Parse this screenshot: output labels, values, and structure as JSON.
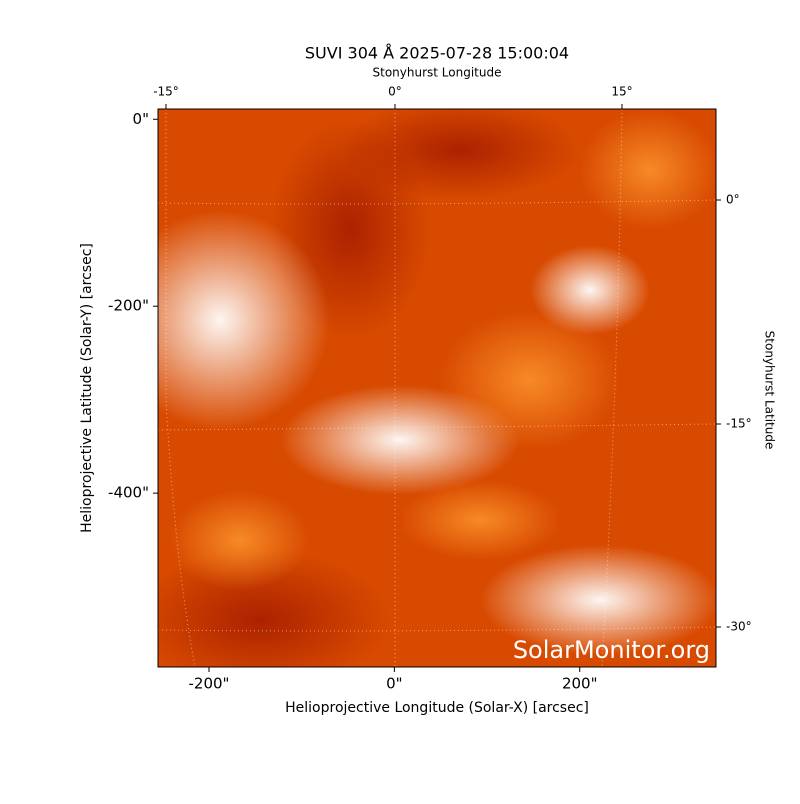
{
  "chart_data": {
    "type": "image",
    "title": "SUVI 304 Å 2025-07-28 15:00:04",
    "xlabel": "Helioprojective Longitude (Solar-X) [arcsec]",
    "ylabel": "Helioprojective Latitude (Solar-Y) [arcsec]",
    "x2label": "Stonyhurst Longitude",
    "y2label": "Stonyhurst Latitude",
    "xlim": [
      -255,
      347
    ],
    "ylim": [
      -586,
      11
    ],
    "xticks": [
      {
        "value": -200,
        "label": "-200\""
      },
      {
        "value": 0,
        "label": "0\""
      },
      {
        "value": 200,
        "label": "200\""
      }
    ],
    "yticks": [
      {
        "value": 0,
        "label": "0\""
      },
      {
        "value": -200,
        "label": "-200\""
      },
      {
        "value": -400,
        "label": "-400\""
      }
    ],
    "x2ticks": [
      {
        "value": -15,
        "label": "-15°"
      },
      {
        "value": 0,
        "label": "0°"
      },
      {
        "value": 15,
        "label": "15°"
      }
    ],
    "y2ticks": [
      {
        "value": 0,
        "label": "0°"
      },
      {
        "value": -15,
        "label": "-15°"
      },
      {
        "value": -30,
        "label": "-30°"
      }
    ],
    "watermark": "SolarMonitor.org",
    "color": "#d84a00"
  }
}
